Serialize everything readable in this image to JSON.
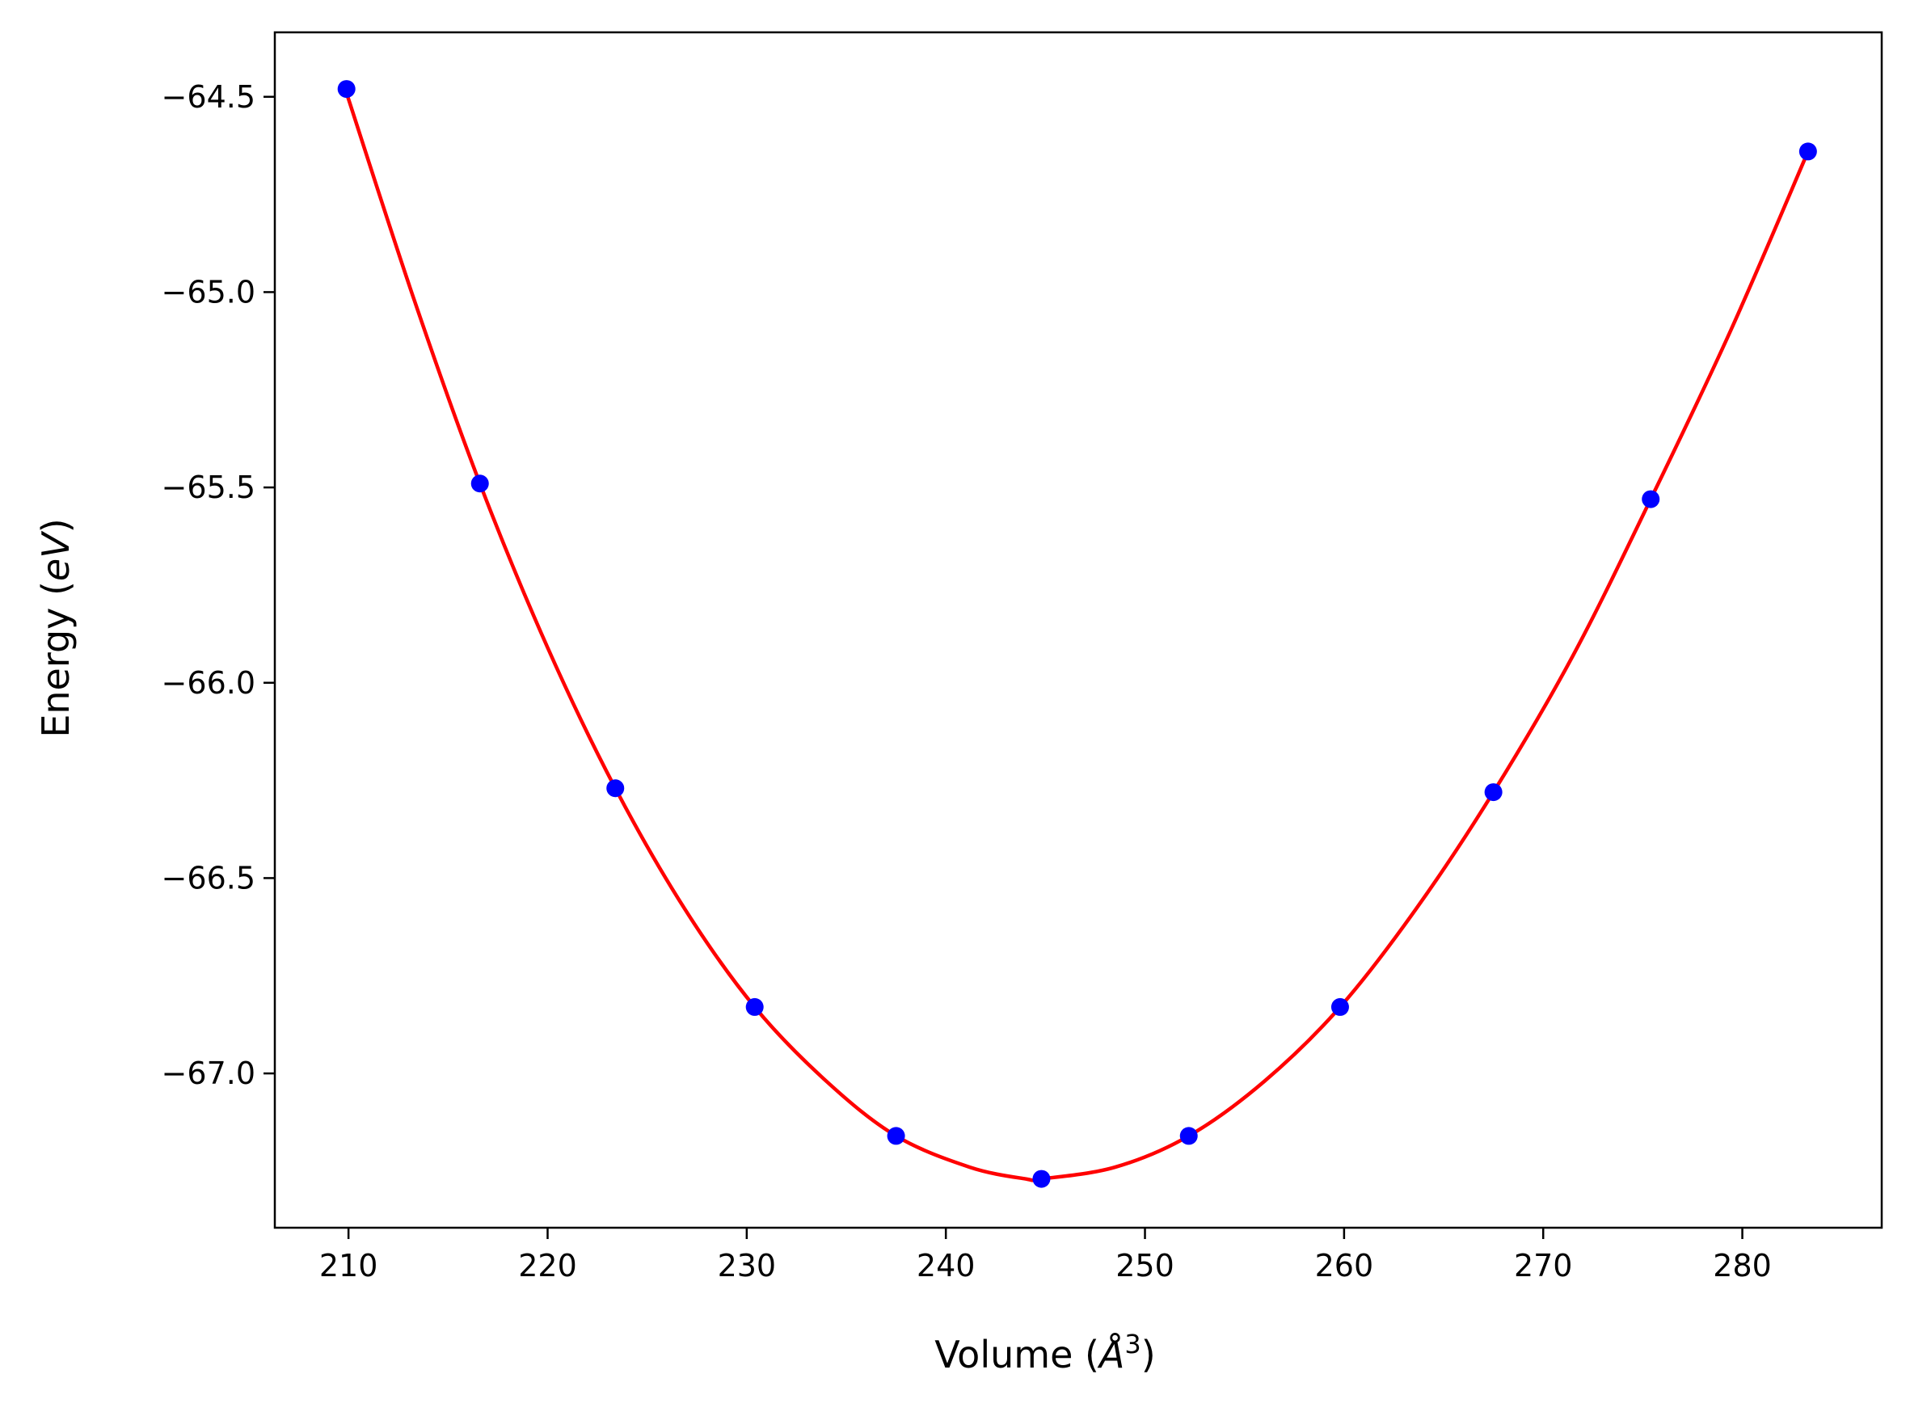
{
  "chart_data": {
    "type": "scatter",
    "title": "",
    "xlabel": {
      "prefix": "Volume (",
      "symbol": "Å",
      "sup": "3",
      "suffix": ")"
    },
    "ylabel": {
      "prefix": "Energy (",
      "symbol": "eV",
      "suffix": ")"
    },
    "xlim": [
      206.3,
      287.0
    ],
    "ylim": [
      -67.395,
      -64.335
    ],
    "xticks": [
      210,
      220,
      230,
      240,
      250,
      260,
      270,
      280
    ],
    "xtick_labels": [
      "210",
      "220",
      "230",
      "240",
      "250",
      "260",
      "270",
      "280"
    ],
    "yticks": [
      -64.5,
      -65.0,
      -65.5,
      -66.0,
      -66.5,
      -67.0
    ],
    "ytick_labels": [
      "−64.5",
      "−65.0",
      "−65.5",
      "−66.0",
      "−66.5",
      "−67.0"
    ],
    "grid": false,
    "legend": "none",
    "series": [
      {
        "kind": "points",
        "color": "#0000ff",
        "x": [
          209.9,
          216.6,
          223.4,
          230.4,
          237.5,
          244.8,
          252.2,
          259.8,
          267.5,
          275.4,
          283.3
        ],
        "y": [
          -64.48,
          -65.49,
          -66.27,
          -66.83,
          -67.16,
          -67.27,
          -67.16,
          -66.83,
          -66.28,
          -65.53,
          -64.64
        ]
      },
      {
        "kind": "fit-curve",
        "color": "#ff0000",
        "x": [
          209.9,
          213.3,
          216.6,
          220.0,
          223.4,
          226.9,
          230.4,
          234.0,
          237.5,
          241.2,
          244.0,
          244.8,
          248.5,
          252.2,
          256.0,
          259.8,
          263.6,
          267.5,
          271.5,
          275.4,
          279.4,
          283.3
        ],
        "y": [
          -64.49,
          -65.02,
          -65.49,
          -65.91,
          -66.27,
          -66.58,
          -66.83,
          -67.02,
          -67.16,
          -67.24,
          -67.27,
          -67.27,
          -67.24,
          -67.16,
          -67.02,
          -66.83,
          -66.58,
          -66.28,
          -65.93,
          -65.53,
          -65.1,
          -64.64
        ]
      }
    ]
  }
}
